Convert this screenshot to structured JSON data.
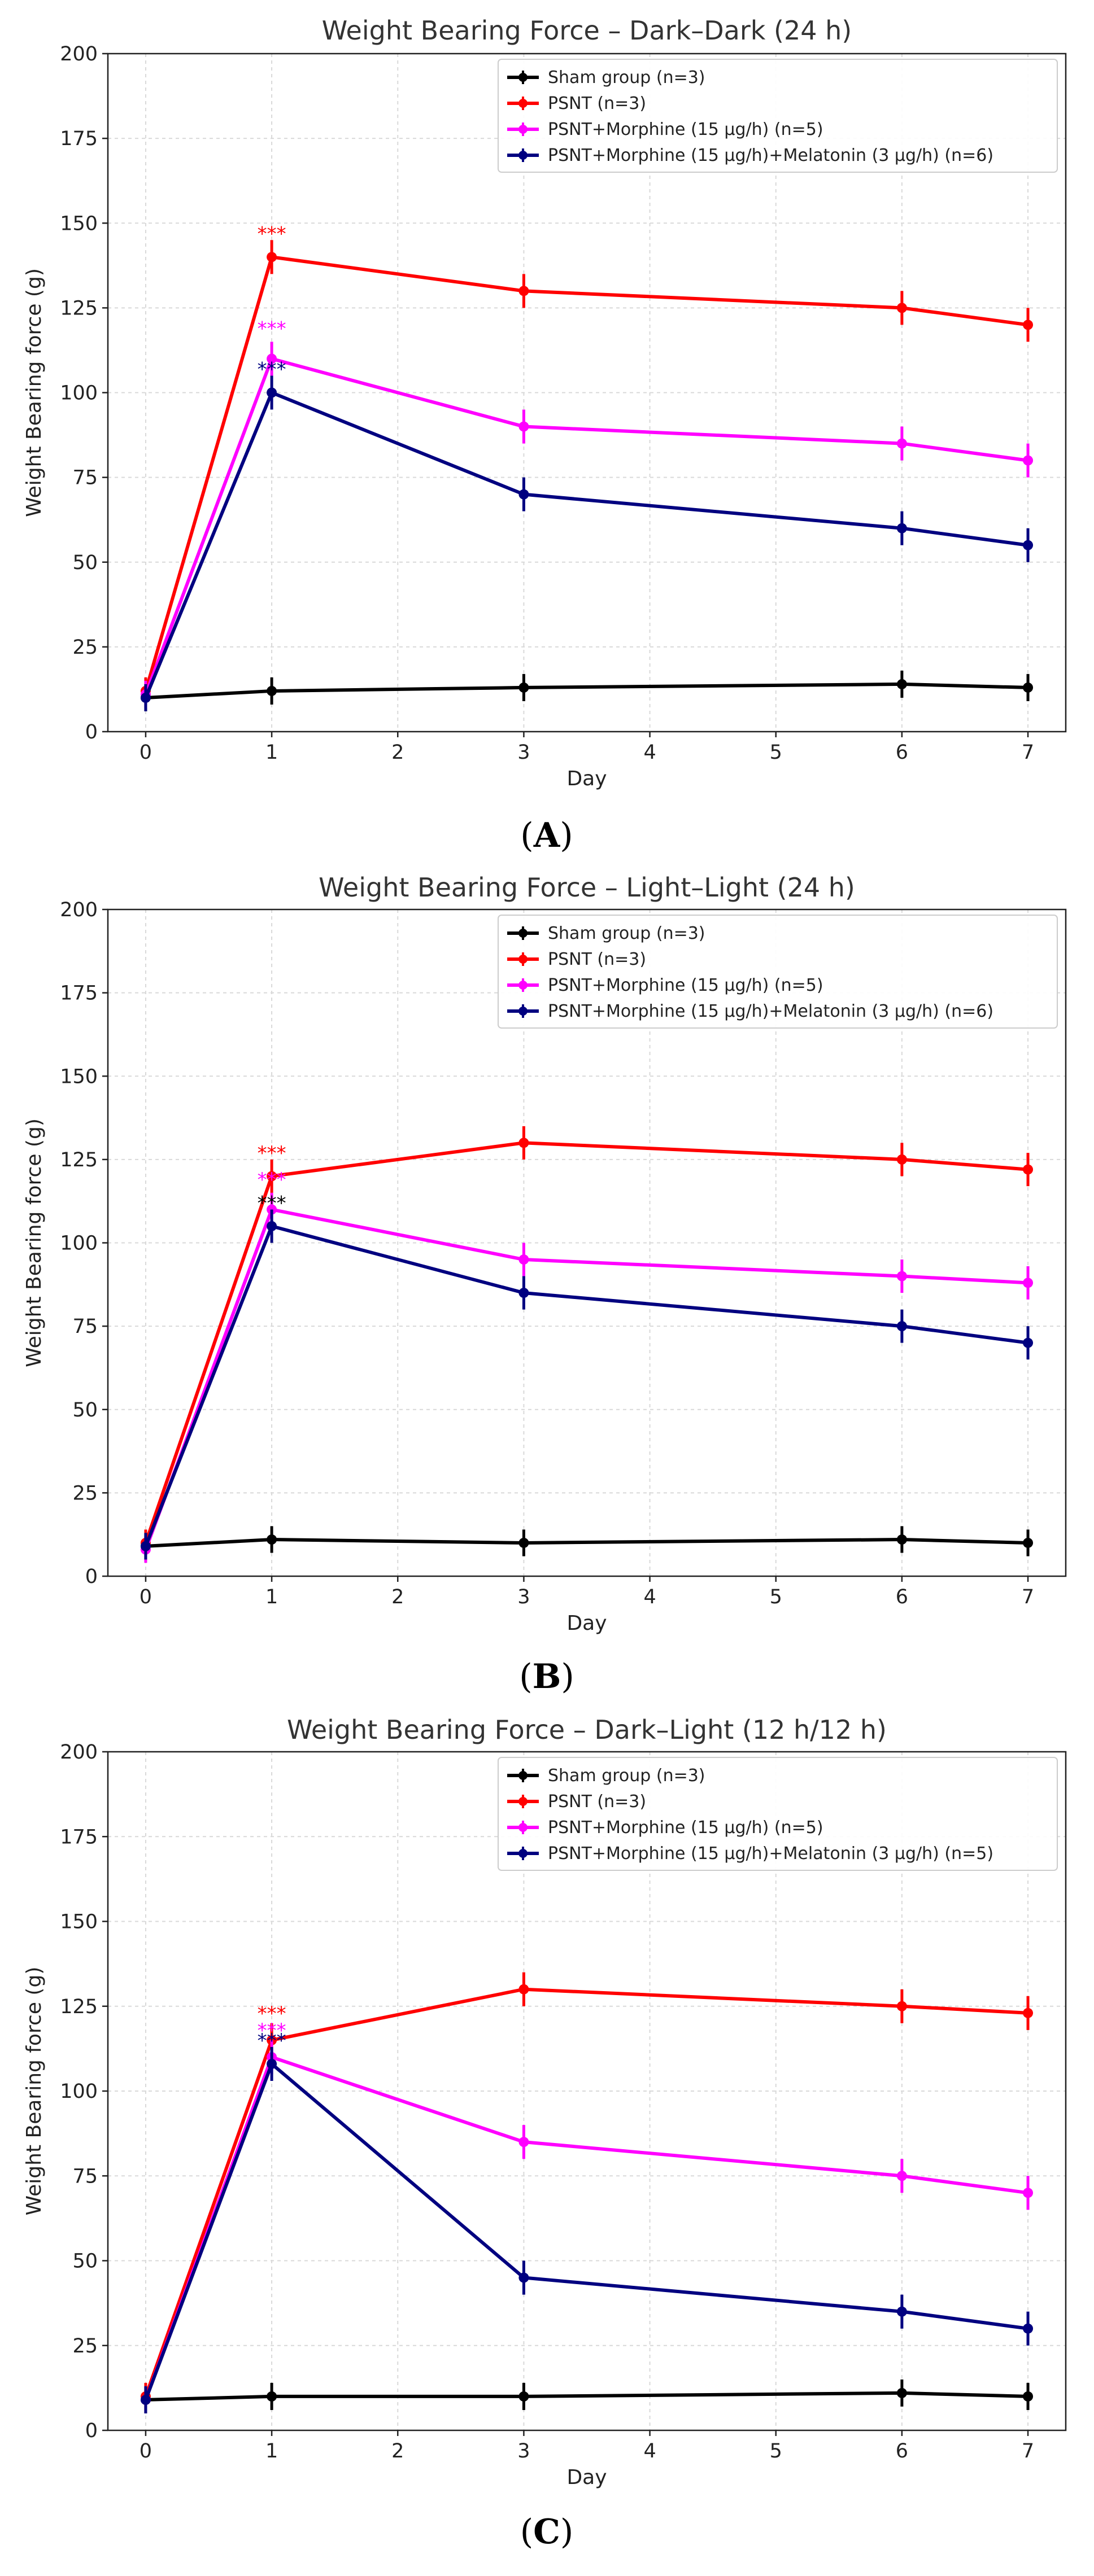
{
  "chart_data": [
    {
      "type": "line",
      "panel_label": "A",
      "title": "Weight Bearing Force – Dark–Dark (24 h)",
      "xlabel": "Day",
      "ylabel": "Weight Bearing force (g)",
      "xlim": [
        -0.3,
        7.3
      ],
      "ylim": [
        0,
        200
      ],
      "x_ticks": [
        0,
        1,
        2,
        3,
        4,
        5,
        6,
        7
      ],
      "y_ticks": [
        0,
        25,
        50,
        75,
        100,
        125,
        150,
        175,
        200
      ],
      "grid": true,
      "legend_position": "top-right",
      "x": [
        0,
        1,
        3,
        6,
        7
      ],
      "series": [
        {
          "name": "Sham group (n=3)",
          "color": "#000000",
          "values": [
            10,
            12,
            13,
            14,
            13
          ],
          "errors": [
            4,
            4,
            4,
            4,
            4
          ]
        },
        {
          "name": "PSNT (n=3)",
          "color": "#ff0000",
          "values": [
            12,
            140,
            130,
            125,
            120
          ],
          "errors": [
            4,
            5,
            5,
            5,
            5
          ]
        },
        {
          "name": "PSNT+Morphine (15 µg/h) (n=5)",
          "color": "#ff00ff",
          "values": [
            11,
            110,
            90,
            85,
            80
          ],
          "errors": [
            4,
            5,
            5,
            5,
            5
          ]
        },
        {
          "name": "PSNT+Morphine (15 µg/h)+Melatonin (3 µg/h) (n=6)",
          "color": "#000080",
          "values": [
            10,
            100,
            70,
            60,
            55
          ],
          "errors": [
            4,
            5,
            5,
            5,
            5
          ]
        }
      ],
      "annotations": [
        {
          "text": "***",
          "x": 1,
          "y": 145,
          "color": "#ff0000"
        },
        {
          "text": "***",
          "x": 1,
          "y": 117,
          "color": "#ff00ff"
        },
        {
          "text": "***",
          "x": 1,
          "y": 105,
          "color": "#000080"
        }
      ]
    },
    {
      "type": "line",
      "panel_label": "B",
      "title": "Weight Bearing Force – Light–Light (24 h)",
      "xlabel": "Day",
      "ylabel": "Weight Bearing force (g)",
      "xlim": [
        -0.3,
        7.3
      ],
      "ylim": [
        0,
        200
      ],
      "x_ticks": [
        0,
        1,
        2,
        3,
        4,
        5,
        6,
        7
      ],
      "y_ticks": [
        0,
        25,
        50,
        75,
        100,
        125,
        150,
        175,
        200
      ],
      "grid": true,
      "legend_position": "top-right",
      "x": [
        0,
        1,
        3,
        6,
        7
      ],
      "series": [
        {
          "name": "Sham group (n=3)",
          "color": "#000000",
          "values": [
            9,
            11,
            10,
            11,
            10
          ],
          "errors": [
            4,
            4,
            4,
            4,
            4
          ]
        },
        {
          "name": "PSNT (n=3)",
          "color": "#ff0000",
          "values": [
            10,
            120,
            130,
            125,
            122
          ],
          "errors": [
            4,
            5,
            5,
            5,
            5
          ]
        },
        {
          "name": "PSNT+Morphine (15 µg/h) (n=5)",
          "color": "#ff00ff",
          "values": [
            8,
            110,
            95,
            90,
            88
          ],
          "errors": [
            4,
            5,
            5,
            5,
            5
          ]
        },
        {
          "name": "PSNT+Morphine (15 µg/h)+Melatonin (3 µg/h) (n=6)",
          "color": "#000080",
          "values": [
            9,
            105,
            85,
            75,
            70
          ],
          "errors": [
            4,
            5,
            5,
            5,
            5
          ]
        }
      ],
      "annotations": [
        {
          "text": "***",
          "x": 1,
          "y": 125,
          "color": "#ff0000"
        },
        {
          "text": "***",
          "x": 1,
          "y": 117,
          "color": "#ff00ff"
        },
        {
          "text": "***",
          "x": 1,
          "y": 110,
          "color": "#000000"
        }
      ]
    },
    {
      "type": "line",
      "panel_label": "C",
      "title": "Weight Bearing Force – Dark–Light (12 h/12 h)",
      "xlabel": "Day",
      "ylabel": "Weight Bearing force (g)",
      "xlim": [
        -0.3,
        7.3
      ],
      "ylim": [
        0,
        200
      ],
      "x_ticks": [
        0,
        1,
        2,
        3,
        4,
        5,
        6,
        7
      ],
      "y_ticks": [
        0,
        25,
        50,
        75,
        100,
        125,
        150,
        175,
        200
      ],
      "grid": true,
      "legend_position": "top-right",
      "x": [
        0,
        1,
        3,
        6,
        7
      ],
      "series": [
        {
          "name": "Sham group (n=3)",
          "color": "#000000",
          "values": [
            9,
            10,
            10,
            11,
            10
          ],
          "errors": [
            4,
            4,
            4,
            4,
            4
          ]
        },
        {
          "name": "PSNT (n=3)",
          "color": "#ff0000",
          "values": [
            10,
            115,
            130,
            125,
            123
          ],
          "errors": [
            4,
            5,
            5,
            5,
            5
          ]
        },
        {
          "name": "PSNT+Morphine (15 µg/h) (n=5)",
          "color": "#ff00ff",
          "values": [
            9,
            110,
            85,
            75,
            70
          ],
          "errors": [
            4,
            5,
            5,
            5,
            5
          ]
        },
        {
          "name": "PSNT+Morphine (15 µg/h)+Melatonin (3 µg/h) (n=5)",
          "color": "#000080",
          "values": [
            9,
            108,
            45,
            35,
            30
          ],
          "errors": [
            4,
            5,
            5,
            5,
            5
          ]
        }
      ],
      "annotations": [
        {
          "text": "***",
          "x": 1,
          "y": 121,
          "color": "#ff0000"
        },
        {
          "text": "***",
          "x": 1,
          "y": 116,
          "color": "#ff00ff"
        },
        {
          "text": "***",
          "x": 1,
          "y": 113,
          "color": "#000080"
        }
      ]
    }
  ]
}
